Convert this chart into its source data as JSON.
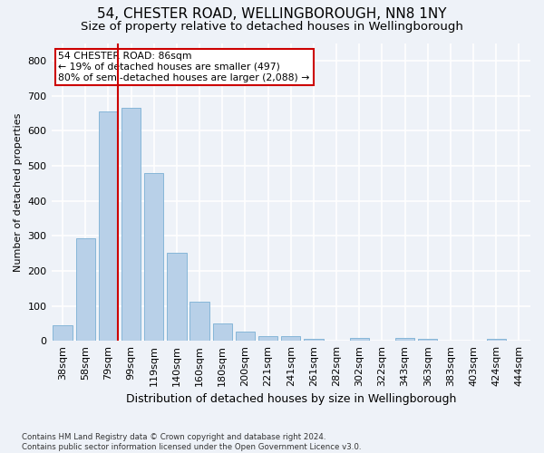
{
  "title1": "54, CHESTER ROAD, WELLINGBOROUGH, NN8 1NY",
  "title2": "Size of property relative to detached houses in Wellingborough",
  "xlabel": "Distribution of detached houses by size in Wellingborough",
  "ylabel": "Number of detached properties",
  "footnote": "Contains HM Land Registry data © Crown copyright and database right 2024.\nContains public sector information licensed under the Open Government Licence v3.0.",
  "categories": [
    "38sqm",
    "58sqm",
    "79sqm",
    "99sqm",
    "119sqm",
    "140sqm",
    "160sqm",
    "180sqm",
    "200sqm",
    "221sqm",
    "241sqm",
    "261sqm",
    "282sqm",
    "302sqm",
    "322sqm",
    "343sqm",
    "363sqm",
    "383sqm",
    "403sqm",
    "424sqm",
    "444sqm"
  ],
  "values": [
    45,
    293,
    655,
    665,
    478,
    252,
    112,
    50,
    26,
    14,
    14,
    6,
    0,
    8,
    0,
    9,
    5,
    0,
    0,
    5,
    0
  ],
  "bar_color": "#b8d0e8",
  "bar_edge_color": "#7aafd4",
  "annotation_text_line1": "54 CHESTER ROAD: 86sqm",
  "annotation_text_line2": "← 19% of detached houses are smaller (497)",
  "annotation_text_line3": "80% of semi-detached houses are larger (2,088) →",
  "annotation_box_color": "#ffffff",
  "annotation_box_edge_color": "#cc0000",
  "vline_color": "#cc0000",
  "vline_x": 2.43,
  "ylim": [
    0,
    850
  ],
  "yticks": [
    0,
    100,
    200,
    300,
    400,
    500,
    600,
    700,
    800
  ],
  "background_color": "#eef2f8",
  "grid_color": "#ffffff",
  "title1_fontsize": 11,
  "title2_fontsize": 9.5,
  "xlabel_fontsize": 9,
  "ylabel_fontsize": 8,
  "tick_fontsize": 8,
  "annot_fontsize": 7.8
}
